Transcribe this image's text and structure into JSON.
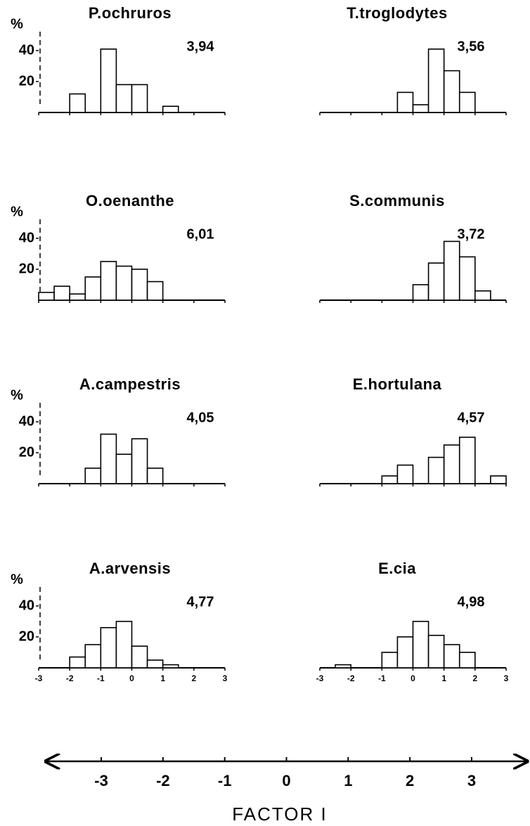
{
  "chart_data": [
    {
      "type": "histogram",
      "title": "P.ochruros",
      "annotation": "3,94",
      "ylabel": "%",
      "bins": [
        -3,
        -2.5,
        -2,
        -1.5,
        -1,
        -0.5,
        0,
        0.5,
        1,
        1.5,
        2,
        2.5,
        3
      ],
      "values": [
        0,
        0,
        12,
        0,
        41,
        18,
        18,
        0,
        4,
        0,
        0,
        0
      ],
      "xlim": [
        -3,
        3
      ],
      "xticks": [
        -3,
        -2,
        -1,
        0,
        1,
        2,
        3
      ],
      "xtick_labels": false,
      "ylim": [
        0,
        45
      ],
      "yticks": [
        20,
        40
      ]
    },
    {
      "type": "histogram",
      "title": "T.troglodytes",
      "annotation": "3,56",
      "bins": [
        -3,
        -2.5,
        -2,
        -1.5,
        -1,
        -0.5,
        0,
        0.5,
        1,
        1.5,
        2,
        2.5,
        3
      ],
      "values": [
        0,
        0,
        0,
        0,
        0,
        13,
        5,
        41,
        27,
        13,
        0,
        0
      ],
      "xlim": [
        -3,
        3
      ],
      "xticks": [
        -3,
        -2,
        -1,
        0,
        1,
        2,
        3
      ],
      "xtick_labels": false,
      "ylim": [
        0,
        45
      ]
    },
    {
      "type": "histogram",
      "title": "O.oenanthe",
      "annotation": "6,01",
      "ylabel": "%",
      "bins": [
        -3,
        -2.5,
        -2,
        -1.5,
        -1,
        -0.5,
        0,
        0.5,
        1,
        1.5,
        2,
        2.5,
        3
      ],
      "values": [
        5,
        9,
        4,
        15,
        25,
        22,
        20,
        12,
        0,
        0,
        0,
        0
      ],
      "xlim": [
        -3,
        3
      ],
      "xticks": [
        -3,
        -2,
        -1,
        0,
        1,
        2,
        3
      ],
      "xtick_labels": false,
      "ylim": [
        0,
        45
      ],
      "yticks": [
        20,
        40
      ]
    },
    {
      "type": "histogram",
      "title": "S.communis",
      "annotation": "3,72",
      "bins": [
        -3,
        -2.5,
        -2,
        -1.5,
        -1,
        -0.5,
        0,
        0.5,
        1,
        1.5,
        2,
        2.5,
        3
      ],
      "values": [
        0,
        0,
        0,
        0,
        0,
        0,
        10,
        24,
        38,
        28,
        6,
        0
      ],
      "xlim": [
        -3,
        3
      ],
      "xticks": [
        -3,
        -2,
        -1,
        0,
        1,
        2,
        3
      ],
      "xtick_labels": false,
      "ylim": [
        0,
        45
      ]
    },
    {
      "type": "histogram",
      "title": "A.campestris",
      "annotation": "4,05",
      "ylabel": "%",
      "bins": [
        -3,
        -2.5,
        -2,
        -1.5,
        -1,
        -0.5,
        0,
        0.5,
        1,
        1.5,
        2,
        2.5,
        3
      ],
      "values": [
        0,
        0,
        0,
        10,
        32,
        19,
        29,
        10,
        0,
        0,
        0,
        0
      ],
      "xlim": [
        -3,
        3
      ],
      "xticks": [
        -3,
        -2,
        -1,
        0,
        1,
        2,
        3
      ],
      "xtick_labels": false,
      "ylim": [
        0,
        45
      ],
      "yticks": [
        20,
        40
      ]
    },
    {
      "type": "histogram",
      "title": "E.hortulana",
      "annotation": "4,57",
      "bins": [
        -3,
        -2.5,
        -2,
        -1.5,
        -1,
        -0.5,
        0,
        0.5,
        1,
        1.5,
        2,
        2.5,
        3
      ],
      "values": [
        0,
        0,
        0,
        0,
        5,
        12,
        0,
        17,
        25,
        30,
        0,
        5
      ],
      "xlim": [
        -3,
        3
      ],
      "xticks": [
        -3,
        -2,
        -1,
        0,
        1,
        2,
        3
      ],
      "xtick_labels": false,
      "ylim": [
        0,
        45
      ]
    },
    {
      "type": "histogram",
      "title": "A.arvensis",
      "annotation": "4,77",
      "ylabel": "%",
      "bins": [
        -3,
        -2.5,
        -2,
        -1.5,
        -1,
        -0.5,
        0,
        0.5,
        1,
        1.5,
        2,
        2.5,
        3
      ],
      "values": [
        0,
        0,
        7,
        15,
        26,
        30,
        14,
        5,
        2,
        0,
        0,
        0
      ],
      "xlim": [
        -3,
        3
      ],
      "xticks": [
        -3,
        -2,
        -1,
        0,
        1,
        2,
        3
      ],
      "xtick_labels": true,
      "ylim": [
        0,
        45
      ],
      "yticks": [
        20,
        40
      ]
    },
    {
      "type": "histogram",
      "title": "E.cia",
      "annotation": "4,98",
      "bins": [
        -3,
        -2.5,
        -2,
        -1.5,
        -1,
        -0.5,
        0,
        0.5,
        1,
        1.5,
        2,
        2.5,
        3
      ],
      "values": [
        0,
        2,
        0,
        0,
        10,
        20,
        30,
        21,
        15,
        10,
        0,
        0
      ],
      "xlim": [
        -3,
        3
      ],
      "xticks": [
        -3,
        -2,
        -1,
        0,
        1,
        2,
        3
      ],
      "xtick_labels": true,
      "ylim": [
        0,
        45
      ]
    },
    {
      "type": "axis",
      "xlabel": "FACTOR I",
      "xlim": [
        -3.9,
        3.9
      ],
      "xticks": [
        -3,
        -2,
        -1,
        0,
        1,
        2,
        3
      ]
    }
  ]
}
